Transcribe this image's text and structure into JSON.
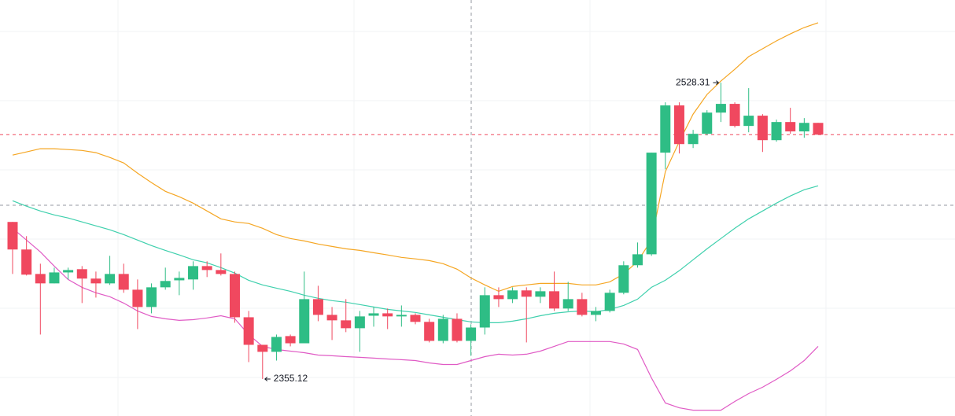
{
  "chart_data": {
    "type": "candlestick",
    "ylim": [
      2333.5,
      2576.6
    ],
    "up_color": "#2ebd85",
    "down_color": "#f0485f",
    "open": [
      2446.9,
      2430.8,
      2416.5,
      2411.0,
      2417.4,
      2419.3,
      2413.8,
      2411.0,
      2416.5,
      2407.3,
      2397.2,
      2408.7,
      2412.8,
      2413.3,
      2421.1,
      2418.8,
      2416.5,
      2391.2,
      2375.1,
      2371.0,
      2380.2,
      2376.0,
      2401.8,
      2392.6,
      2389.4,
      2384.8,
      2392.1,
      2393.5,
      2391.7,
      2392.6,
      2388.5,
      2377.4,
      2390.3,
      2377.4,
      2385.2,
      2404.1,
      2401.8,
      2406.9,
      2403.2,
      2406.4,
      2396.3,
      2401.8,
      2392.6,
      2394.9,
      2405.5,
      2421.6,
      2428.0,
      2487.4,
      2515.0,
      2492.4,
      2498.4,
      2510.8,
      2515.9,
      2503.0,
      2509.0,
      2494.7,
      2505.3,
      2499.8,
      2504.8
    ],
    "high": [
      2446.9,
      2438.6,
      2422.5,
      2420.2,
      2420.2,
      2421.1,
      2417.9,
      2427.1,
      2422.5,
      2413.3,
      2411.0,
      2420.2,
      2417.9,
      2423.9,
      2423.9,
      2428.5,
      2417.9,
      2394.9,
      2375.1,
      2381.1,
      2381.1,
      2417.9,
      2409.6,
      2397.2,
      2401.8,
      2394.9,
      2397.2,
      2396.3,
      2398.1,
      2393.5,
      2390.3,
      2392.6,
      2393.5,
      2387.1,
      2408.7,
      2408.7,
      2408.7,
      2408.7,
      2408.7,
      2417.9,
      2411.9,
      2405.5,
      2397.2,
      2407.3,
      2423.9,
      2434.9,
      2487.4,
      2516.8,
      2516.8,
      2500.7,
      2512.2,
      2528.31,
      2516.8,
      2525.1,
      2509.9,
      2506.7,
      2513.6,
      2507.6,
      2504.8
    ],
    "low": [
      2416.5,
      2415.6,
      2381.1,
      2411.0,
      2413.3,
      2399.5,
      2402.7,
      2410.1,
      2405.5,
      2384.3,
      2393.5,
      2407.3,
      2404.1,
      2407.3,
      2414.7,
      2415.6,
      2388.0,
      2365.0,
      2355.12,
      2365.9,
      2374.2,
      2376.0,
      2388.9,
      2377.9,
      2382.5,
      2371.0,
      2385.7,
      2384.3,
      2385.7,
      2387.1,
      2376.5,
      2376.0,
      2376.5,
      2368.7,
      2381.1,
      2397.2,
      2399.5,
      2376.5,
      2399.5,
      2394.9,
      2394.9,
      2391.7,
      2388.9,
      2394.0,
      2404.6,
      2420.2,
      2427.1,
      2477.7,
      2486.9,
      2490.1,
      2497.5,
      2505.3,
      2502.1,
      2499.3,
      2487.8,
      2493.8,
      2498.4,
      2496.1,
      2497.9
    ],
    "close": [
      2430.8,
      2416.1,
      2411.0,
      2417.4,
      2418.8,
      2413.8,
      2411.0,
      2416.5,
      2407.3,
      2397.2,
      2408.7,
      2412.4,
      2414.2,
      2421.1,
      2418.8,
      2416.5,
      2391.2,
      2375.1,
      2371.0,
      2379.7,
      2376.0,
      2401.8,
      2392.6,
      2389.4,
      2384.8,
      2391.7,
      2393.5,
      2391.7,
      2392.6,
      2388.5,
      2377.4,
      2390.3,
      2377.4,
      2385.2,
      2404.1,
      2401.8,
      2406.9,
      2403.2,
      2406.4,
      2396.3,
      2401.8,
      2392.6,
      2394.9,
      2405.5,
      2421.6,
      2428.0,
      2487.4,
      2515.0,
      2492.4,
      2498.4,
      2510.8,
      2515.9,
      2503.0,
      2509.0,
      2494.7,
      2505.3,
      2499.8,
      2504.8,
      2497.9
    ],
    "bands": [
      {
        "color": "#f5a623",
        "values": [
          2486.0,
          2487.8,
          2489.7,
          2489.7,
          2489.2,
          2488.7,
          2487.4,
          2484.6,
          2481.4,
          2475.4,
          2469.9,
          2464.8,
          2461.6,
          2457.9,
          2453.3,
          2448.7,
          2446.9,
          2446.0,
          2443.2,
          2439.5,
          2437.2,
          2435.8,
          2434.0,
          2432.6,
          2431.2,
          2430.3,
          2428.9,
          2427.6,
          2426.2,
          2425.3,
          2424.3,
          2422.5,
          2419.3,
          2414.2,
          2410.1,
          2406.4,
          2409.2,
          2410.1,
          2411.0,
          2411.0,
          2411.0,
          2410.1,
          2410.1,
          2411.9,
          2416.5,
          2423.9,
          2436.3,
          2476.3,
          2493.8,
          2509.9,
          2521.4,
          2529.2,
          2536.1,
          2543.5,
          2548.1,
          2552.7,
          2556.8,
          2560.5,
          2563.3
        ]
      },
      {
        "color": "#3fd0ad",
        "values": [
          2459.3,
          2456.1,
          2453.3,
          2451.0,
          2449.2,
          2446.9,
          2444.6,
          2442.3,
          2439.5,
          2436.3,
          2433.1,
          2430.3,
          2427.6,
          2424.8,
          2423.0,
          2420.2,
          2417.0,
          2412.8,
          2410.1,
          2408.2,
          2406.4,
          2404.1,
          2402.3,
          2400.9,
          2400.0,
          2398.6,
          2397.2,
          2395.8,
          2394.9,
          2394.0,
          2392.6,
          2391.2,
          2389.8,
          2388.5,
          2388.0,
          2388.0,
          2388.9,
          2390.3,
          2392.1,
          2393.5,
          2394.4,
          2394.9,
          2394.4,
          2395.8,
          2398.1,
          2401.8,
          2408.7,
          2412.8,
          2418.4,
          2424.8,
          2431.2,
          2437.2,
          2443.2,
          2448.7,
          2453.3,
          2457.9,
          2462.1,
          2465.7,
          2468.0
        ]
      },
      {
        "color": "#e05bc5",
        "values": [
          2443.2,
          2436.3,
          2429.4,
          2421.1,
          2413.3,
          2408.7,
          2405.5,
          2403.2,
          2399.5,
          2394.9,
          2391.7,
          2390.3,
          2389.4,
          2389.8,
          2390.8,
          2392.1,
          2390.3,
          2381.1,
          2374.2,
          2372.4,
          2371.4,
          2370.5,
          2369.1,
          2368.7,
          2368.2,
          2367.8,
          2367.3,
          2366.8,
          2366.4,
          2365.9,
          2364.5,
          2363.6,
          2363.6,
          2365.9,
          2368.2,
          2369.6,
          2369.1,
          2369.6,
          2371.4,
          2374.2,
          2377.0,
          2377.0,
          2377.0,
          2377.0,
          2375.6,
          2372.4,
          2355.8,
          2341.1,
          2338.3,
          2336.9,
          2336.9,
          2336.9,
          2342.0,
          2346.6,
          2350.3,
          2354.9,
          2359.9,
          2365.9,
          2374.2
        ]
      }
    ]
  }
}
